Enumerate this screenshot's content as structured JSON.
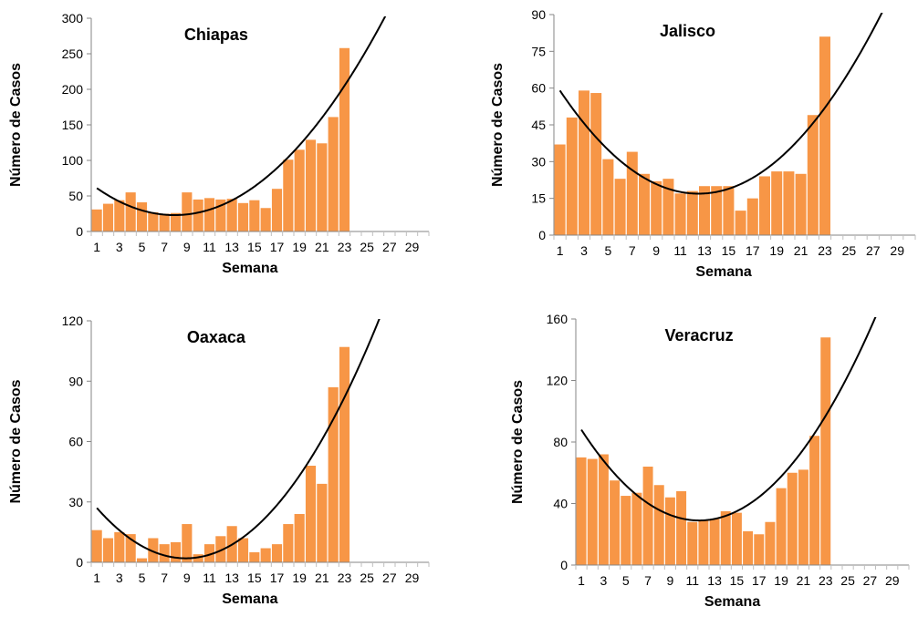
{
  "colors": {
    "bar": "#f79646",
    "trend": "#000000",
    "axis": "#868686",
    "gridtick": "#bfbfbf"
  },
  "chart_data": [
    {
      "type": "bar",
      "title": "Chiapas",
      "xlabel": "Semana",
      "ylabel": "Número de Casos",
      "ylim": [
        0,
        300
      ],
      "yticks": [
        "0",
        "50",
        "100",
        "150",
        "200",
        "250",
        "300"
      ],
      "categories": [
        1,
        2,
        3,
        4,
        5,
        6,
        7,
        8,
        9,
        10,
        11,
        12,
        13,
        14,
        15,
        16,
        17,
        18,
        19,
        20,
        21,
        22,
        23,
        24,
        25,
        26,
        27,
        28,
        29,
        30
      ],
      "xtick_labels": [
        "1",
        "3",
        "5",
        "7",
        "9",
        "11",
        "13",
        "15",
        "17",
        "19",
        "21",
        "23",
        "25",
        "27",
        "29"
      ],
      "values": [
        31,
        39,
        44,
        55,
        41,
        27,
        25,
        26,
        55,
        45,
        47,
        45,
        46,
        40,
        44,
        33,
        60,
        101,
        115,
        129,
        124,
        161,
        258,
        null,
        null,
        null,
        null,
        null,
        null,
        null
      ],
      "trendline": {
        "type": "polynomial",
        "order": 2,
        "points": [
          [
            1,
            61
          ],
          [
            9,
            24
          ],
          [
            23,
            205
          ]
        ]
      }
    },
    {
      "type": "bar",
      "title": "Jalisco",
      "xlabel": "Semana",
      "ylabel": "Número de Casos",
      "ylim": [
        0,
        90
      ],
      "yticks": [
        "0",
        "15",
        "30",
        "45",
        "60",
        "75",
        "90"
      ],
      "categories": [
        1,
        2,
        3,
        4,
        5,
        6,
        7,
        8,
        9,
        10,
        11,
        12,
        13,
        14,
        15,
        16,
        17,
        18,
        19,
        20,
        21,
        22,
        23,
        24,
        25,
        26,
        27,
        28,
        29,
        30
      ],
      "xtick_labels": [
        "1",
        "3",
        "5",
        "7",
        "9",
        "11",
        "13",
        "15",
        "17",
        "19",
        "21",
        "23",
        "25",
        "27",
        "29"
      ],
      "values": [
        37,
        48,
        59,
        58,
        31,
        23,
        34,
        25,
        22,
        23,
        17,
        18,
        20,
        20,
        20,
        10,
        15,
        24,
        26,
        26,
        25,
        49,
        81,
        null,
        null,
        null,
        null,
        null,
        null,
        null
      ],
      "trendline": {
        "type": "polynomial",
        "order": 2,
        "points": [
          [
            1,
            59
          ],
          [
            12,
            17
          ],
          [
            23,
            52
          ]
        ]
      }
    },
    {
      "type": "bar",
      "title": "Oaxaca",
      "xlabel": "Semana",
      "ylabel": "Número de Casos",
      "ylim": [
        0,
        120
      ],
      "yticks": [
        "0",
        "30",
        "60",
        "90",
        "120"
      ],
      "categories": [
        1,
        2,
        3,
        4,
        5,
        6,
        7,
        8,
        9,
        10,
        11,
        12,
        13,
        14,
        15,
        16,
        17,
        18,
        19,
        20,
        21,
        22,
        23,
        24,
        25,
        26,
        27,
        28,
        29,
        30
      ],
      "xtick_labels": [
        "1",
        "3",
        "5",
        "7",
        "9",
        "11",
        "13",
        "15",
        "17",
        "19",
        "21",
        "23",
        "25",
        "27",
        "29"
      ],
      "values": [
        16,
        12,
        15,
        14,
        2,
        12,
        9,
        10,
        19,
        4,
        9,
        13,
        18,
        12,
        5,
        7,
        9,
        19,
        24,
        48,
        39,
        87,
        107,
        null,
        null,
        null,
        null,
        null,
        null,
        null
      ],
      "trendline": {
        "type": "polynomial",
        "order": 2,
        "points": [
          [
            1,
            27
          ],
          [
            9,
            2
          ],
          [
            23,
            82
          ]
        ]
      }
    },
    {
      "type": "bar",
      "title": "Veracruz",
      "xlabel": "Semana",
      "ylabel": "Número de Casos",
      "ylim": [
        0,
        160
      ],
      "yticks": [
        "0",
        "40",
        "80",
        "120",
        "160"
      ],
      "categories": [
        1,
        2,
        3,
        4,
        5,
        6,
        7,
        8,
        9,
        10,
        11,
        12,
        13,
        14,
        15,
        16,
        17,
        18,
        19,
        20,
        21,
        22,
        23,
        24,
        25,
        26,
        27,
        28,
        29,
        30
      ],
      "xtick_labels": [
        "1",
        "3",
        "5",
        "7",
        "9",
        "11",
        "13",
        "15",
        "17",
        "19",
        "21",
        "23",
        "25",
        "27",
        "29"
      ],
      "values": [
        70,
        69,
        72,
        55,
        45,
        47,
        64,
        52,
        44,
        48,
        28,
        29,
        30,
        35,
        34,
        22,
        20,
        28,
        50,
        60,
        62,
        84,
        148,
        null,
        null,
        null,
        null,
        null,
        null,
        null
      ],
      "trendline": {
        "type": "polynomial",
        "order": 2,
        "points": [
          [
            1,
            88
          ],
          [
            11.5,
            29
          ],
          [
            23,
            97
          ]
        ]
      }
    }
  ]
}
